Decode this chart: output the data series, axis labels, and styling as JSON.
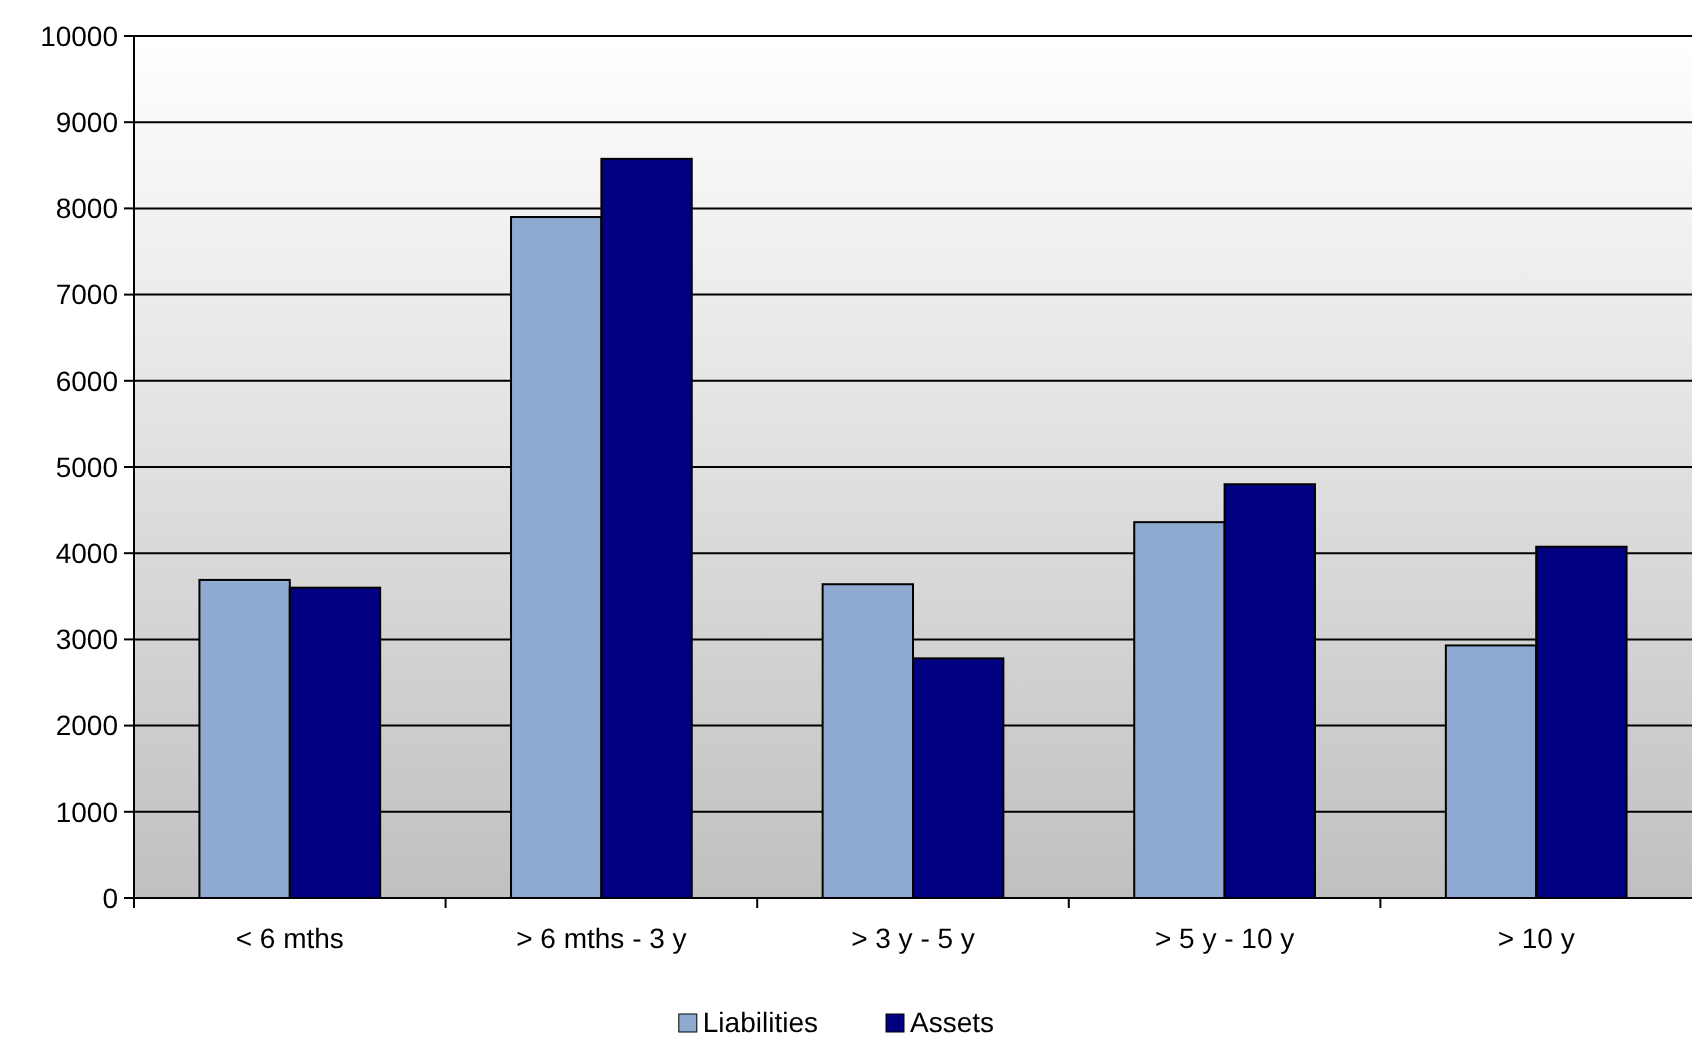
{
  "chart_data": {
    "type": "bar",
    "categories": [
      "< 6 mths",
      "> 6 mths - 3 y",
      "> 3 y - 5 y",
      "> 5 y - 10 y",
      "> 10 y"
    ],
    "series": [
      {
        "name": "Liabilities",
        "color": "#8eaad0",
        "values": [
          3690,
          7900,
          3640,
          4360,
          2930
        ]
      },
      {
        "name": "Assets",
        "color": "#000080",
        "values": [
          3600,
          8575,
          2780,
          4800,
          4075
        ]
      }
    ],
    "ylim": [
      0,
      10000
    ],
    "yticks": [
      0,
      1000,
      2000,
      3000,
      4000,
      5000,
      6000,
      7000,
      8000,
      9000,
      10000
    ],
    "grid": "y",
    "legend": "bottom"
  }
}
